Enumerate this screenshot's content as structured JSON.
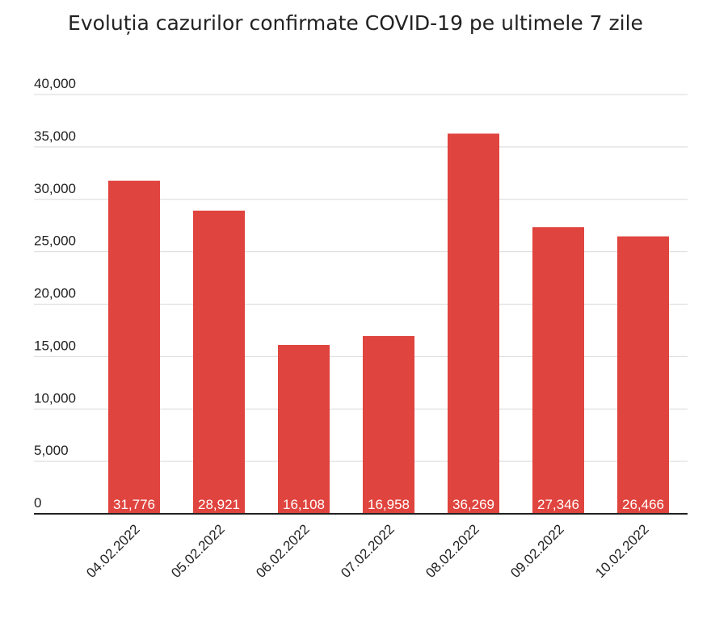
{
  "chart_data": {
    "type": "bar",
    "title": "Evoluția cazurilor confirmate COVID-19 pe ultimele 7 zile",
    "xlabel": "",
    "ylabel": "",
    "categories": [
      "04.02.2022",
      "05.02.2022",
      "06.02.2022",
      "07.02.2022",
      "08.02.2022",
      "09.02.2022",
      "10.02.2022"
    ],
    "values": [
      31776,
      28921,
      16108,
      16958,
      36269,
      27346,
      26466
    ],
    "data_labels": [
      "31,776",
      "28,921",
      "16,108",
      "16,958",
      "36,269",
      "27,346",
      "26,466"
    ],
    "ylim": [
      0,
      40000
    ],
    "yticks": [
      0,
      5000,
      10000,
      15000,
      20000,
      25000,
      30000,
      35000,
      40000
    ],
    "ytick_labels": [
      "0",
      "5,000",
      "10,000",
      "15,000",
      "20,000",
      "25,000",
      "30,000",
      "35,000",
      "40,000"
    ],
    "grid": true,
    "legend": "none",
    "bar_color": "#e0443e"
  }
}
